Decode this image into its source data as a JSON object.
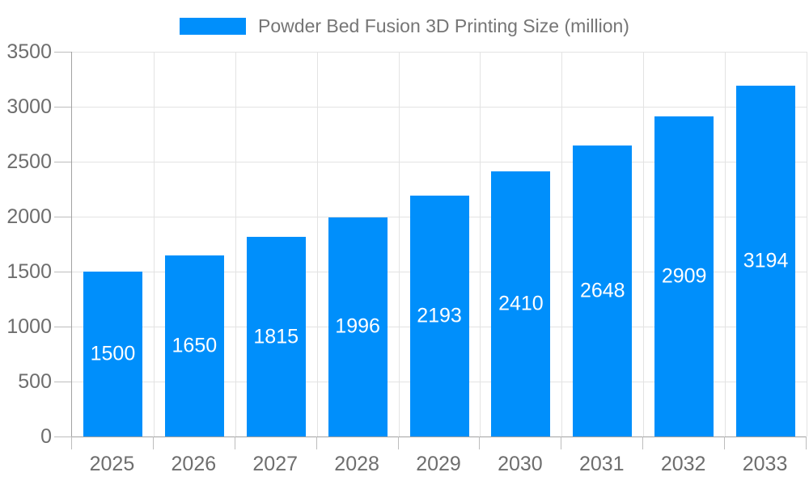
{
  "legend": {
    "label": "Powder Bed Fusion 3D Printing Size (million)"
  },
  "chart_data": {
    "type": "bar",
    "title": "Powder Bed Fusion 3D Printing Size (million)",
    "categories": [
      "2025",
      "2026",
      "2027",
      "2028",
      "2029",
      "2030",
      "2031",
      "2032",
      "2033"
    ],
    "values": [
      1500,
      1650,
      1815,
      1996,
      2193,
      2410,
      2648,
      2909,
      3194
    ],
    "xlabel": "",
    "ylabel": "",
    "ylim": [
      0,
      3500
    ],
    "ytick_step": 500,
    "yticks": [
      0,
      500,
      1000,
      1500,
      2000,
      2500,
      3000,
      3500
    ],
    "grid": true,
    "legend_position": "top",
    "value_label_position": "inside-center",
    "colors": {
      "bar": "#008FFB",
      "bar_value_label": "#ffffff",
      "axis_line": "#a2a2a2",
      "tick": "#bdbdbd",
      "gridline": "#e3e3e3",
      "axis_text": "#6e6e6e",
      "legend_text": "#757575",
      "background": "#ffffff"
    }
  }
}
